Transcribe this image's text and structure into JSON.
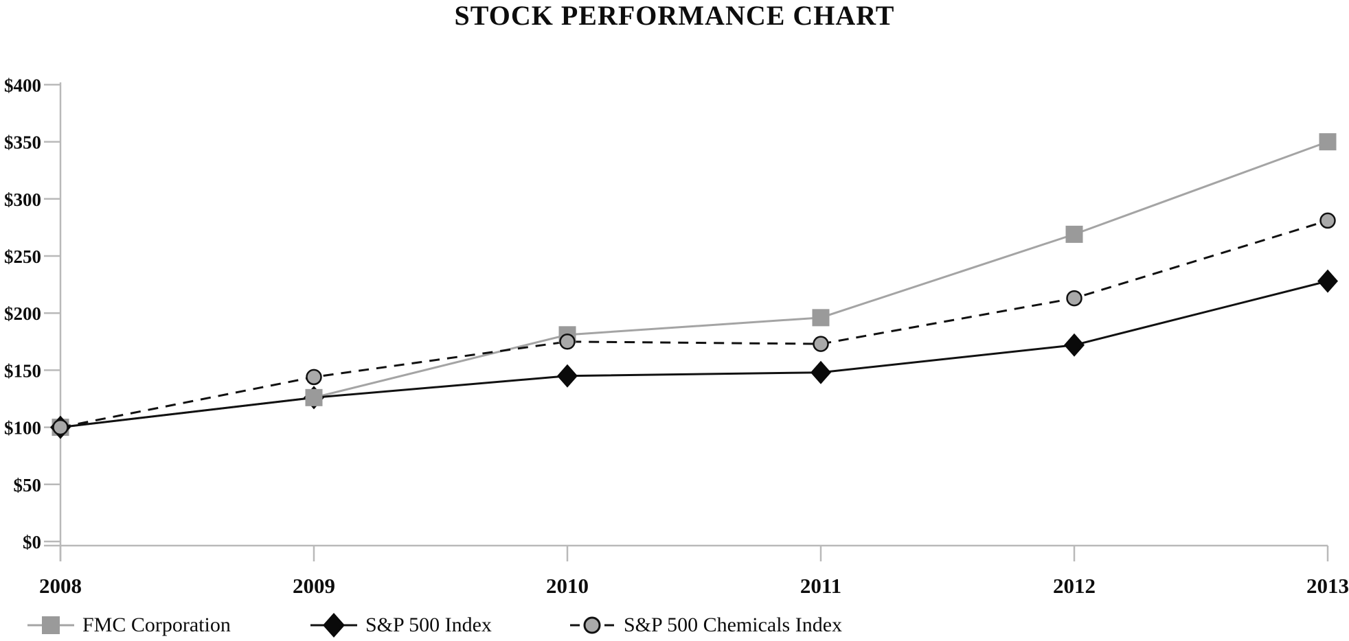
{
  "title": "STOCK PERFORMANCE CHART",
  "background_color": "#ffffff",
  "axis_color": "#b9b9b9",
  "text_color": "#0d0d0d",
  "chart_data": {
    "type": "line",
    "title": "STOCK PERFORMANCE CHART",
    "categories": [
      "2008",
      "2009",
      "2010",
      "2011",
      "2012",
      "2013"
    ],
    "series": [
      {
        "name": "FMC Corporation",
        "marker": "square",
        "line_style": "solid",
        "line_color": "#a4a4a4",
        "marker_fill": "#9a9a9a",
        "marker_stroke": "none",
        "values": [
          100,
          126,
          181,
          196,
          269,
          350
        ]
      },
      {
        "name": "S&P 500 Index",
        "marker": "diamond",
        "line_style": "solid",
        "line_color": "#111111",
        "marker_fill": "#0a0a0a",
        "marker_stroke": "none",
        "values": [
          100,
          126,
          145,
          148,
          172,
          228
        ]
      },
      {
        "name": "S&P 500 Chemicals Index",
        "marker": "circle",
        "line_style": "dashed",
        "line_color": "#111111",
        "marker_fill": "#a9a9a9",
        "marker_stroke": "#111111",
        "values": [
          100,
          144,
          175,
          173,
          213,
          281
        ]
      }
    ],
    "y_ticks": [
      "$0",
      "$50",
      "$100",
      "$150",
      "$200",
      "$250",
      "$300",
      "$350",
      "$400"
    ],
    "ylim": [
      0,
      400
    ],
    "y_tick_step": 50,
    "grid": false,
    "legend_position": "bottom-left"
  }
}
